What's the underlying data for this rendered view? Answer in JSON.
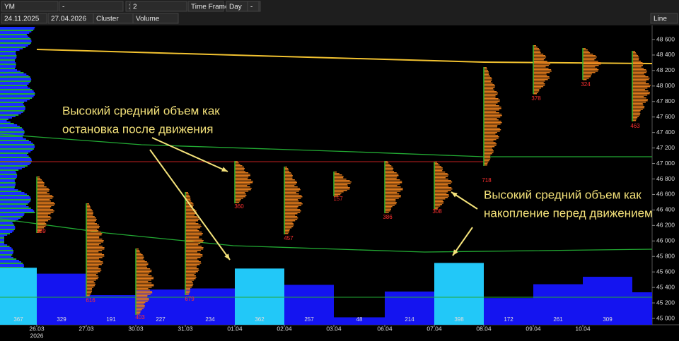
{
  "toolbar": {
    "row1": [
      "YM",
      "-",
      "2",
      "2",
      "Time Frame",
      "Day",
      "-"
    ],
    "row2": [
      "24.11.2025",
      "27.04.2026",
      "Cluster",
      "Volume"
    ],
    "mode": "Line"
  },
  "price_axis": {
    "ticks": [
      {
        "value": 48600,
        "label": "48 600"
      },
      {
        "value": 48400,
        "label": "48 400"
      },
      {
        "value": 48200,
        "label": "48 200"
      },
      {
        "value": 48000,
        "label": "48 000"
      },
      {
        "value": 47800,
        "label": "47 800"
      },
      {
        "value": 47600,
        "label": "47 600"
      },
      {
        "value": 47400,
        "label": "47 400"
      },
      {
        "value": 47200,
        "label": "47 200"
      },
      {
        "value": 47000,
        "label": "47 000"
      },
      {
        "value": 46800,
        "label": "46 800"
      },
      {
        "value": 46600,
        "label": "46 600"
      },
      {
        "value": 46400,
        "label": "46 400"
      },
      {
        "value": 46200,
        "label": "46 200"
      },
      {
        "value": 46000,
        "label": "46 000"
      },
      {
        "value": 45800,
        "label": "45 800"
      },
      {
        "value": 45600,
        "label": "45 600"
      },
      {
        "value": 45400,
        "label": "45 400"
      },
      {
        "value": 45200,
        "label": "45 200"
      },
      {
        "value": 45000,
        "label": "45 000"
      }
    ]
  },
  "date_axis": {
    "dates": [
      "26.03",
      "27.03",
      "30.03",
      "31.03",
      "01.04",
      "02.04",
      "03.04",
      "06.04",
      "07.04",
      "08.04",
      "09.04",
      "10.04"
    ],
    "year": "2026"
  },
  "volume": {
    "values": [
      367,
      329,
      191,
      227,
      234,
      362,
      257,
      48,
      214,
      398,
      172,
      261,
      309
    ]
  },
  "profile_labels": [
    339,
    616,
    403,
    679,
    360,
    457,
    157,
    386,
    308,
    718,
    378,
    324,
    463
  ],
  "annotations": {
    "left": [
      "Высокий средний объем как",
      "остановка после движения"
    ],
    "right": [
      "Высокий средний объем как",
      "накопление перед движением"
    ]
  }
}
